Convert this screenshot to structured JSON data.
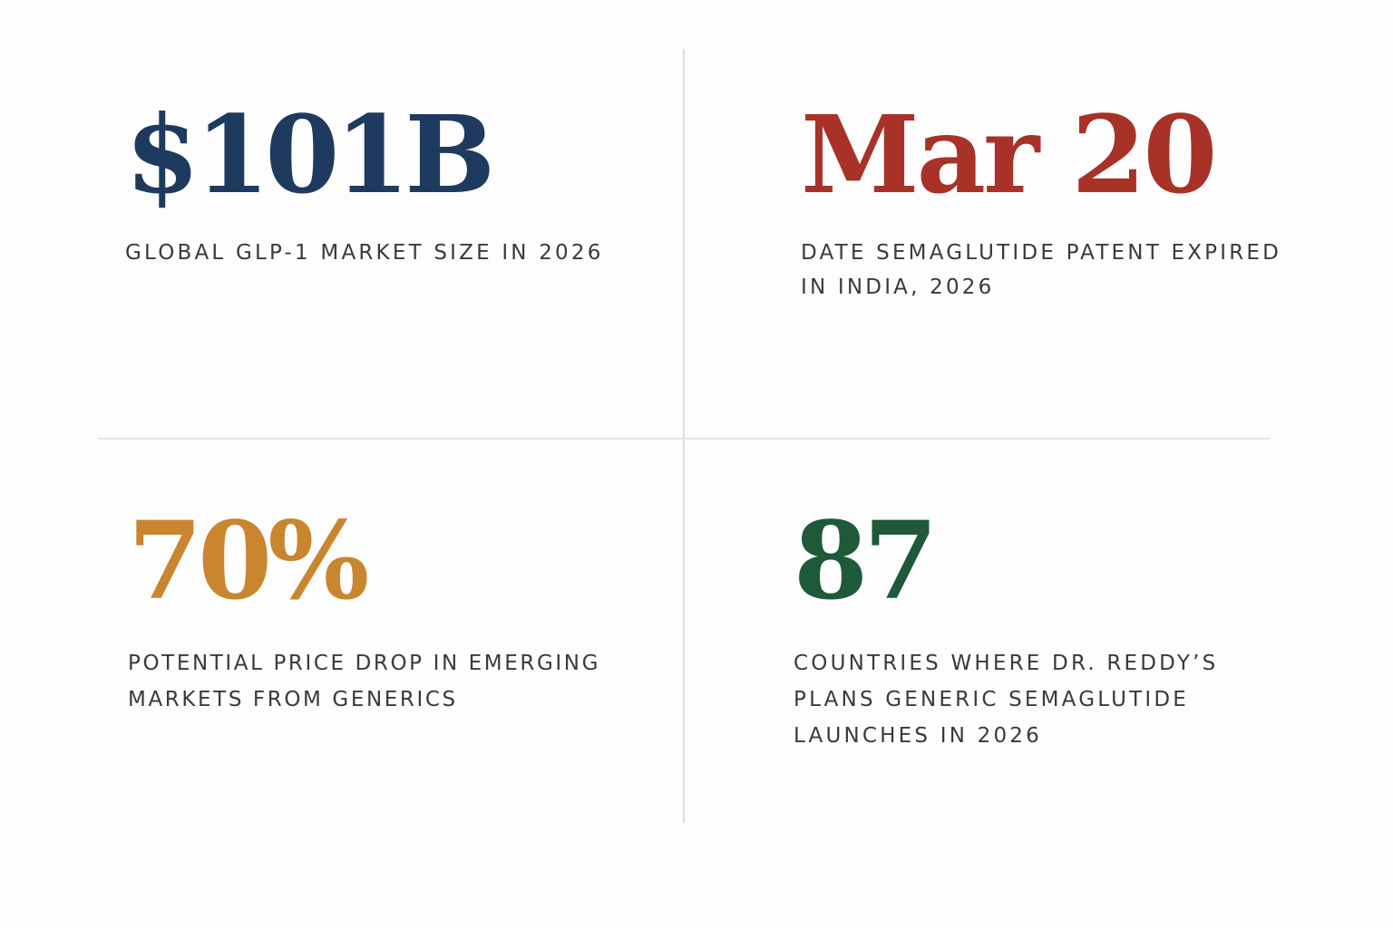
{
  "stats": [
    {
      "value": "$101B",
      "label": "GLOBAL GLP-1 MARKET SIZE IN 2026",
      "color": "#1f3a5f"
    },
    {
      "value": "Mar 20",
      "label": "DATE SEMAGLUTIDE PATENT EXPIRED IN INDIA, 2026",
      "color": "#a83227"
    },
    {
      "value": "70%",
      "label": "POTENTIAL PRICE DROP IN EMERGING MARKETS FROM GENERICS",
      "color": "#c9862f"
    },
    {
      "value": "87",
      "label": "COUNTRIES WHERE DR. REDDY’S PLANS GENERIC SEMAGLUTIDE LAUNCHES IN 2026",
      "color": "#1f5a38"
    }
  ]
}
